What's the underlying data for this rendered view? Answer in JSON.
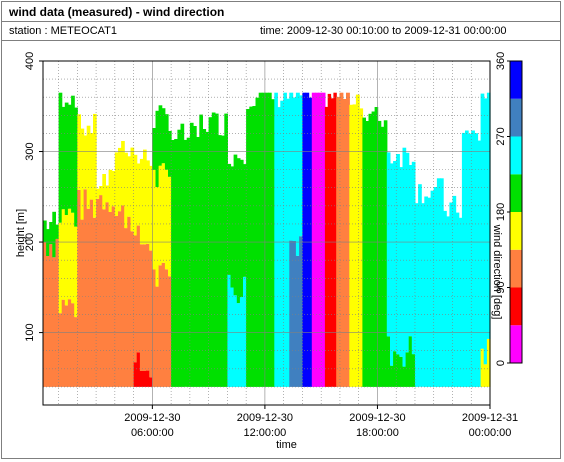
{
  "header": {
    "title": "wind data (measured) - wind direction",
    "station": "station : METEOCAT1",
    "time_range": "time: 2009-12-30 00:10:00 to 2009-12-31 00:00:00"
  },
  "chart_data": {
    "type": "heatmap",
    "title": "wind data (measured) - wind direction",
    "xlabel": "time",
    "ylabel": "height [m]",
    "x_ticks": [
      {
        "value": 6,
        "date": "2009-12-30",
        "clock": "06:00:00"
      },
      {
        "value": 12,
        "date": "2009-12-30",
        "clock": "12:00:00"
      },
      {
        "value": 18,
        "date": "2009-12-30",
        "clock": "18:00:00"
      },
      {
        "value": 24,
        "date": "2009-12-31",
        "clock": "00:00:00"
      }
    ],
    "xlim": [
      0.17,
      24
    ],
    "y_ticks": [
      100,
      200,
      300,
      400
    ],
    "ylim": [
      20,
      400
    ],
    "grid": true,
    "height_range_m": [
      40,
      365
    ],
    "colorbar": {
      "label": "wind direction [deg]",
      "ticks": [
        0,
        90,
        180,
        270,
        360
      ],
      "range": [
        0,
        360
      ],
      "bins": [
        {
          "from": 0,
          "to": 45,
          "color": "#ff00ff"
        },
        {
          "from": 45,
          "to": 90,
          "color": "#ff0000"
        },
        {
          "from": 90,
          "to": 135,
          "color": "#ff8040"
        },
        {
          "from": 135,
          "to": 180,
          "color": "#ffff00"
        },
        {
          "from": 180,
          "to": 225,
          "color": "#00e000"
        },
        {
          "from": 225,
          "to": 270,
          "color": "#00ffff"
        },
        {
          "from": 270,
          "to": 315,
          "color": "#4080c0"
        },
        {
          "from": 315,
          "to": 360,
          "color": "#0000ff"
        }
      ]
    },
    "profiles": [
      {
        "t": [
          0.17,
          1.0
        ],
        "top": 225,
        "layers": [
          [
            40,
            200,
            112
          ],
          [
            200,
            225,
            200
          ]
        ]
      },
      {
        "t": [
          1.0,
          2.0
        ],
        "top": 365,
        "layers": [
          [
            40,
            130,
            112
          ],
          [
            130,
            230,
            160
          ],
          [
            230,
            365,
            200
          ]
        ]
      },
      {
        "t": [
          2.0,
          3.0
        ],
        "top": 330,
        "layers": [
          [
            40,
            240,
            112
          ],
          [
            240,
            330,
            158
          ]
        ]
      },
      {
        "t": [
          3.0,
          4.0
        ],
        "top": 270,
        "layers": [
          [
            40,
            250,
            112
          ],
          [
            250,
            270,
            158
          ]
        ]
      },
      {
        "t": [
          4.0,
          5.0
        ],
        "top": 310,
        "layers": [
          [
            40,
            230,
            112
          ],
          [
            230,
            310,
            158
          ]
        ]
      },
      {
        "t": [
          5.0,
          6.0
        ],
        "top": 295,
        "layers": [
          [
            40,
            60,
            67
          ],
          [
            60,
            200,
            112
          ],
          [
            200,
            295,
            158
          ]
        ]
      },
      {
        "t": [
          6.0,
          7.0
        ],
        "top": 340,
        "layers": [
          [
            40,
            160,
            112
          ],
          [
            160,
            270,
            158
          ],
          [
            270,
            340,
            200
          ]
        ]
      },
      {
        "t": [
          7.0,
          8.5
        ],
        "top": 320,
        "layers": [
          [
            40,
            320,
            200
          ]
        ]
      },
      {
        "t": [
          8.5,
          10.0
        ],
        "top": 335,
        "layers": [
          [
            40,
            335,
            200
          ]
        ]
      },
      {
        "t": [
          10.0,
          11.0
        ],
        "top": 300,
        "layers": [
          [
            40,
            150,
            248
          ],
          [
            150,
            300,
            200
          ]
        ]
      },
      {
        "t": [
          11.0,
          12.5
        ],
        "top": 365,
        "layers": [
          [
            40,
            365,
            200
          ]
        ]
      },
      {
        "t": [
          12.5,
          13.3
        ],
        "top": 365,
        "layers": [
          [
            40,
            365,
            250
          ]
        ]
      },
      {
        "t": [
          13.3,
          14.0
        ],
        "top": 365,
        "layers": [
          [
            40,
            200,
            290
          ],
          [
            200,
            365,
            250
          ]
        ]
      },
      {
        "t": [
          14.0,
          14.5
        ],
        "top": 365,
        "layers": [
          [
            40,
            365,
            340
          ]
        ]
      },
      {
        "t": [
          14.5,
          15.2
        ],
        "top": 365,
        "layers": [
          [
            40,
            365,
            20
          ]
        ]
      },
      {
        "t": [
          15.2,
          15.8
        ],
        "top": 365,
        "layers": [
          [
            40,
            365,
            67
          ]
        ]
      },
      {
        "t": [
          15.8,
          16.5
        ],
        "top": 365,
        "layers": [
          [
            40,
            365,
            112
          ]
        ]
      },
      {
        "t": [
          16.5,
          17.2
        ],
        "top": 365,
        "layers": [
          [
            40,
            365,
            158
          ]
        ]
      },
      {
        "t": [
          17.2,
          18.5
        ],
        "top": 340,
        "layers": [
          [
            40,
            340,
            200
          ]
        ]
      },
      {
        "t": [
          18.5,
          20.0
        ],
        "top": 300,
        "layers": [
          [
            40,
            80,
            200
          ],
          [
            80,
            300,
            250
          ]
        ]
      },
      {
        "t": [
          20.0,
          21.5
        ],
        "top": 260,
        "layers": [
          [
            40,
            260,
            250
          ]
        ]
      },
      {
        "t": [
          21.5,
          22.5
        ],
        "top": 240,
        "layers": [
          [
            40,
            240,
            250
          ]
        ]
      },
      {
        "t": [
          22.5,
          23.5
        ],
        "top": 320,
        "layers": [
          [
            40,
            320,
            250
          ]
        ]
      },
      {
        "t": [
          23.5,
          24.0
        ],
        "top": 365,
        "layers": [
          [
            40,
            80,
            160
          ],
          [
            80,
            365,
            250
          ]
        ]
      }
    ]
  }
}
